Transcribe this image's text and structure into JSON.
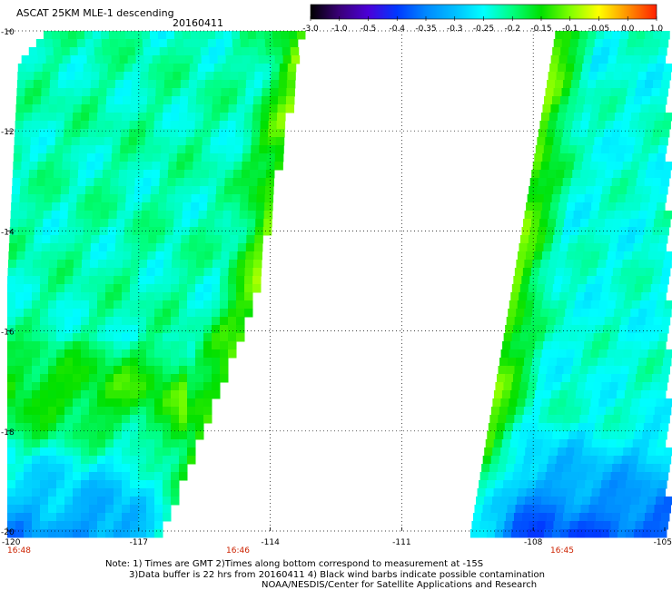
{
  "header": {
    "title": "ASCAT 25KM MLE-1 descending",
    "date": "20160411"
  },
  "colorbar": {
    "labels": [
      "-3.0",
      "-1.0",
      "-0.5",
      "-0.4",
      "-0.35",
      "-0.3",
      "-0.25",
      "-0.2",
      "-0.15",
      "-0.1",
      "-0.05",
      "0.0",
      "1.0"
    ],
    "colors": [
      "#000000",
      "#3a0078",
      "#4b00d8",
      "#0038ff",
      "#0088ff",
      "#00bfff",
      "#00ffff",
      "#00ff80",
      "#00e000",
      "#80ff00",
      "#ffff00",
      "#ff9000",
      "#ff2000"
    ]
  },
  "map": {
    "lat_labels": [
      "-10",
      "-12",
      "-14",
      "-16",
      "-18",
      "-20"
    ],
    "lon_labels": [
      "-120",
      "-117",
      "-114",
      "-111",
      "-108",
      "-105"
    ],
    "time_labels": [
      "16:48",
      "16:46",
      "16:45"
    ],
    "time_color": "#cc2200"
  },
  "notes": {
    "line1": "Note: 1) Times are GMT 2)Times along bottom correspond to measurement at -15S",
    "line2": "3)Data buffer is 22 hrs from 20160411 4) Black wind barbs indicate possible contamination",
    "line3": "NOAA/NESDIS/Center for Satellite Applications and Research"
  }
}
